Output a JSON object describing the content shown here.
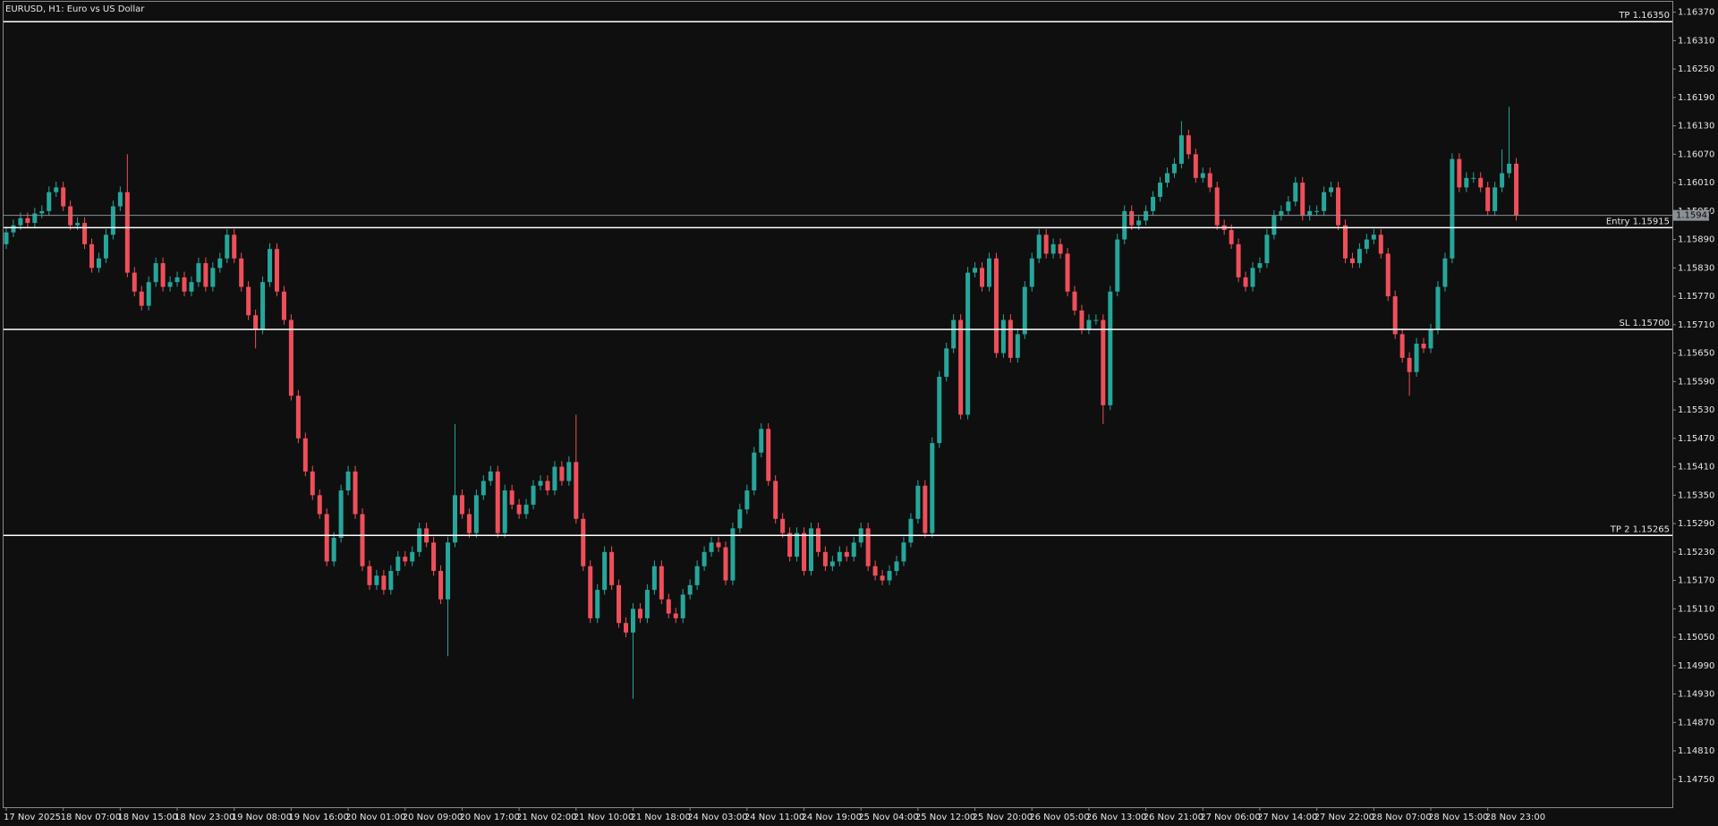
{
  "chart_data": {
    "type": "candlestick",
    "title": "EURUSD, H1:  Euro vs US Dollar",
    "up_color": "#26a69a",
    "down_color": "#ef4f5a",
    "level_color": "#ffffff",
    "bid_color": "#8a8f96",
    "ylim": [
      1.14691,
      1.16392
    ],
    "yticks": [
      {
        "value": 1.1637,
        "label": "1.16370"
      },
      {
        "value": 1.1631,
        "label": "1.16310"
      },
      {
        "value": 1.1625,
        "label": "1.16250"
      },
      {
        "value": 1.1619,
        "label": "1.16190"
      },
      {
        "value": 1.1613,
        "label": "1.16130"
      },
      {
        "value": 1.1607,
        "label": "1.16070"
      },
      {
        "value": 1.1601,
        "label": "1.16010"
      },
      {
        "value": 1.1595,
        "label": "1.15950"
      },
      {
        "value": 1.1589,
        "label": "1.15890"
      },
      {
        "value": 1.1583,
        "label": "1.15830"
      },
      {
        "value": 1.1577,
        "label": "1.15770"
      },
      {
        "value": 1.1571,
        "label": "1.15710"
      },
      {
        "value": 1.1565,
        "label": "1.15650"
      },
      {
        "value": 1.1559,
        "label": "1.15590"
      },
      {
        "value": 1.1553,
        "label": "1.15530"
      },
      {
        "value": 1.1547,
        "label": "1.15470"
      },
      {
        "value": 1.1541,
        "label": "1.15410"
      },
      {
        "value": 1.1535,
        "label": "1.15350"
      },
      {
        "value": 1.1529,
        "label": "1.15290"
      },
      {
        "value": 1.1523,
        "label": "1.15230"
      },
      {
        "value": 1.1517,
        "label": "1.15170"
      },
      {
        "value": 1.1511,
        "label": "1.15110"
      },
      {
        "value": 1.1505,
        "label": "1.15050"
      },
      {
        "value": 1.1499,
        "label": "1.14990"
      },
      {
        "value": 1.1493,
        "label": "1.14930"
      },
      {
        "value": 1.1487,
        "label": "1.14870"
      },
      {
        "value": 1.1481,
        "label": "1.14810"
      },
      {
        "value": 1.1475,
        "label": "1.14750"
      }
    ],
    "levels": [
      {
        "label": "TP 1.16350",
        "value": 1.1635
      },
      {
        "label": "Entry 1.15915",
        "value": 1.15915
      },
      {
        "label": "SL 1.15700",
        "value": 1.157
      },
      {
        "label": "TP 2 1.15265",
        "value": 1.15265
      }
    ],
    "bid": {
      "value": 1.15941,
      "label": "1.15941"
    },
    "categories": [
      "17 Nov 2025",
      null,
      null,
      null,
      null,
      null,
      null,
      null,
      "18 Nov 07:00",
      null,
      null,
      null,
      null,
      null,
      null,
      null,
      "18 Nov 15:00",
      null,
      null,
      null,
      null,
      null,
      null,
      null,
      "18 Nov 23:00",
      null,
      null,
      null,
      null,
      null,
      null,
      null,
      "19 Nov 08:00",
      null,
      null,
      null,
      null,
      null,
      null,
      null,
      "19 Nov 16:00",
      null,
      null,
      null,
      null,
      null,
      null,
      null,
      "20 Nov 01:00",
      null,
      null,
      null,
      null,
      null,
      null,
      null,
      "20 Nov 09:00",
      null,
      null,
      null,
      null,
      null,
      null,
      null,
      "20 Nov 17:00",
      null,
      null,
      null,
      null,
      null,
      null,
      null,
      "21 Nov 02:00",
      null,
      null,
      null,
      null,
      null,
      null,
      null,
      "21 Nov 10:00",
      null,
      null,
      null,
      null,
      null,
      null,
      null,
      "21 Nov 18:00",
      null,
      null,
      null,
      null,
      null,
      null,
      null,
      "24 Nov 03:00",
      null,
      null,
      null,
      null,
      null,
      null,
      null,
      "24 Nov 11:00",
      null,
      null,
      null,
      null,
      null,
      null,
      null,
      "24 Nov 19:00",
      null,
      null,
      null,
      null,
      null,
      null,
      null,
      "25 Nov 04:00",
      null,
      null,
      null,
      null,
      null,
      null,
      null,
      "25 Nov 12:00",
      null,
      null,
      null,
      null,
      null,
      null,
      null,
      "25 Nov 20:00",
      null,
      null,
      null,
      null,
      null,
      null,
      null,
      "26 Nov 05:00",
      null,
      null,
      null,
      null,
      null,
      null,
      null,
      "26 Nov 13:00",
      null,
      null,
      null,
      null,
      null,
      null,
      null,
      "26 Nov 21:00",
      null,
      null,
      null,
      null,
      null,
      null,
      null,
      "27 Nov 06:00",
      null,
      null,
      null,
      null,
      null,
      null,
      null,
      "27 Nov 14:00",
      null,
      null,
      null,
      null,
      null,
      null,
      null,
      "27 Nov 22:00",
      null,
      null,
      null,
      null,
      null,
      null,
      null,
      "28 Nov 07:00",
      null,
      null,
      null,
      null,
      null,
      null,
      null,
      "28 Nov 15:00",
      null,
      null,
      null,
      null,
      null,
      null,
      null,
      "28 Nov 23:00",
      null,
      null,
      null,
      null
    ],
    "open": [
      1.1588,
      1.15905,
      1.1592,
      1.15935,
      1.15925,
      1.15945,
      1.1595,
      1.1599,
      1.16,
      1.1596,
      1.1592,
      1.15925,
      1.1588,
      1.1583,
      1.1585,
      1.159,
      1.1596,
      1.1599,
      1.1582,
      1.1578,
      1.1575,
      1.158,
      1.1584,
      1.1579,
      1.158,
      1.1581,
      1.1578,
      1.158,
      1.1584,
      1.1579,
      1.1583,
      1.1585,
      1.159,
      1.1585,
      1.1579,
      1.1573,
      1.157,
      1.158,
      1.1587,
      1.1578,
      1.1572,
      1.1556,
      1.1547,
      1.154,
      1.1535,
      1.1531,
      1.1521,
      1.1526,
      1.1536,
      1.154,
      1.1531,
      1.152,
      1.1516,
      1.1518,
      1.1515,
      1.1519,
      1.1522,
      1.1521,
      1.1523,
      1.1528,
      1.1525,
      1.1519,
      1.1513,
      1.1525,
      1.1535,
      1.1531,
      1.1527,
      1.1535,
      1.1538,
      1.154,
      1.1527,
      1.1536,
      1.1533,
      1.1531,
      1.1533,
      1.1537,
      1.1538,
      1.1536,
      1.1541,
      1.1538,
      1.1542,
      1.153,
      1.152,
      1.1509,
      1.1515,
      1.1523,
      1.1516,
      1.1508,
      1.1506,
      1.1511,
      1.1509,
      1.1515,
      1.152,
      1.1513,
      1.151,
      1.1509,
      1.1514,
      1.1516,
      1.152,
      1.1523,
      1.1525,
      1.1524,
      1.1517,
      1.1528,
      1.1532,
      1.1536,
      1.1544,
      1.1549,
      1.1538,
      1.153,
      1.1527,
      1.1522,
      1.1527,
      1.1519,
      1.1528,
      1.1523,
      1.152,
      1.1521,
      1.1523,
      1.1522,
      1.1525,
      1.1528,
      1.152,
      1.1518,
      1.1517,
      1.1519,
      1.1521,
      1.1525,
      1.153,
      1.1537,
      1.1527,
      1.1546,
      1.156,
      1.1566,
      1.1572,
      1.1552,
      1.1582,
      1.1583,
      1.1579,
      1.1585,
      1.1565,
      1.1572,
      1.1564,
      1.1569,
      1.1579,
      1.1585,
      1.159,
      1.1586,
      1.1588,
      1.1586,
      1.1578,
      1.1574,
      1.157,
      1.1572,
      1.1572,
      1.1554,
      1.1578,
      1.1589,
      1.1595,
      1.1592,
      1.1593,
      1.1595,
      1.1598,
      1.1601,
      1.1603,
      1.1605,
      1.1611,
      1.1607,
      1.1602,
      1.1603,
      1.16,
      1.1592,
      1.1591,
      1.1588,
      1.1581,
      1.1579,
      1.1583,
      1.1584,
      1.159,
      1.1594,
      1.1595,
      1.1597,
      1.1601,
      1.1594,
      1.1595,
      1.1595,
      1.1599,
      1.16,
      1.1592,
      1.1585,
      1.1584,
      1.1587,
      1.1589,
      1.159,
      1.1586,
      1.1577,
      1.1569,
      1.1564,
      1.1561,
      1.1567,
      1.1566,
      1.157,
      1.1579,
      1.1585,
      1.1606,
      1.16,
      1.1602,
      1.1602,
      1.16,
      1.1595,
      1.16,
      1.1603,
      1.1605
    ],
    "high": [
      1.15917,
      1.15932,
      1.15947,
      1.15947,
      1.15957,
      1.15962,
      1.16002,
      1.16012,
      1.16012,
      1.15972,
      1.15937,
      1.15937,
      1.15892,
      1.15862,
      1.15912,
      1.15972,
      1.16002,
      1.1607,
      1.15832,
      1.15792,
      1.15812,
      1.15852,
      1.15852,
      1.15812,
      1.15822,
      1.15822,
      1.15812,
      1.15852,
      1.15852,
      1.15842,
      1.15862,
      1.15912,
      1.15912,
      1.15862,
      1.15802,
      1.15742,
      1.15812,
      1.15882,
      1.15882,
      1.15792,
      1.15732,
      1.15572,
      1.15482,
      1.15412,
      1.15362,
      1.15322,
      1.15272,
      1.15372,
      1.15412,
      1.15412,
      1.15322,
      1.15212,
      1.15192,
      1.15192,
      1.15202,
      1.15232,
      1.15232,
      1.15242,
      1.15292,
      1.15292,
      1.15262,
      1.15202,
      1.15262,
      1.155,
      1.15362,
      1.15322,
      1.15362,
      1.15392,
      1.15412,
      1.15412,
      1.15372,
      1.15372,
      1.15342,
      1.15342,
      1.15382,
      1.15392,
      1.15392,
      1.15422,
      1.15422,
      1.15432,
      1.1552,
      1.15312,
      1.15212,
      1.15162,
      1.15242,
      1.15242,
      1.15172,
      1.15092,
      1.15122,
      1.15122,
      1.15162,
      1.15212,
      1.15212,
      1.15142,
      1.15112,
      1.15152,
      1.15172,
      1.15212,
      1.15242,
      1.15262,
      1.15262,
      1.15252,
      1.15292,
      1.15332,
      1.15372,
      1.15452,
      1.15502,
      1.15502,
      1.15392,
      1.15312,
      1.15282,
      1.15282,
      1.15282,
      1.15292,
      1.15292,
      1.15242,
      1.15222,
      1.15242,
      1.15242,
      1.15262,
      1.15292,
      1.15292,
      1.15212,
      1.15192,
      1.15202,
      1.15222,
      1.15262,
      1.15312,
      1.15382,
      1.15382,
      1.15472,
      1.15612,
      1.15672,
      1.15732,
      1.15732,
      1.15832,
      1.15842,
      1.15842,
      1.15862,
      1.15862,
      1.15732,
      1.15732,
      1.15702,
      1.15802,
      1.15862,
      1.15912,
      1.15912,
      1.15892,
      1.15892,
      1.15872,
      1.15792,
      1.15752,
      1.15732,
      1.15732,
      1.15732,
      1.15792,
      1.15902,
      1.15962,
      1.15962,
      1.15942,
      1.15962,
      1.15992,
      1.16022,
      1.16042,
      1.16062,
      1.1614,
      1.16122,
      1.16082,
      1.16042,
      1.16042,
      1.16012,
      1.15932,
      1.15922,
      1.15892,
      1.15822,
      1.15842,
      1.15852,
      1.15912,
      1.15952,
      1.15962,
      1.15982,
      1.16022,
      1.16022,
      1.15962,
      1.15962,
      1.16002,
      1.16012,
      1.16012,
      1.15932,
      1.15862,
      1.15882,
      1.15902,
      1.15912,
      1.15912,
      1.15872,
      1.15782,
      1.15702,
      1.15652,
      1.15682,
      1.15682,
      1.15712,
      1.15802,
      1.15862,
      1.16072,
      1.16072,
      1.16032,
      1.16032,
      1.16032,
      1.16012,
      1.16012,
      1.1608,
      1.1617,
      1.16062
    ],
    "low": [
      1.1587,
      1.15895,
      1.1591,
      1.15915,
      1.15915,
      1.15935,
      1.1594,
      1.1598,
      1.1595,
      1.1591,
      1.1591,
      1.1587,
      1.1582,
      1.1582,
      1.1584,
      1.1589,
      1.1595,
      1.1581,
      1.1577,
      1.1574,
      1.1574,
      1.1579,
      1.1578,
      1.1578,
      1.1579,
      1.1577,
      1.1577,
      1.1579,
      1.1578,
      1.1578,
      1.1582,
      1.1584,
      1.1584,
      1.1578,
      1.1572,
      1.1566,
      1.1569,
      1.1579,
      1.1577,
      1.1571,
      1.1555,
      1.1546,
      1.1539,
      1.1534,
      1.153,
      1.152,
      1.152,
      1.1525,
      1.1535,
      1.153,
      1.1519,
      1.1515,
      1.1515,
      1.1514,
      1.1514,
      1.1518,
      1.152,
      1.152,
      1.1522,
      1.1524,
      1.1518,
      1.1512,
      1.1501,
      1.1524,
      1.153,
      1.1526,
      1.1526,
      1.1534,
      1.1537,
      1.1526,
      1.1526,
      1.1532,
      1.153,
      1.153,
      1.1532,
      1.1536,
      1.1535,
      1.1535,
      1.1537,
      1.1537,
      1.1529,
      1.1519,
      1.1508,
      1.1508,
      1.1514,
      1.1515,
      1.1507,
      1.1505,
      1.1492,
      1.1508,
      1.1508,
      1.1514,
      1.1512,
      1.1509,
      1.1508,
      1.1508,
      1.1513,
      1.1515,
      1.1519,
      1.1522,
      1.1523,
      1.1516,
      1.1516,
      1.1527,
      1.1531,
      1.1535,
      1.1543,
      1.1537,
      1.1529,
      1.1526,
      1.1521,
      1.1521,
      1.1518,
      1.1518,
      1.1522,
      1.1519,
      1.1519,
      1.152,
      1.1521,
      1.1521,
      1.1524,
      1.1519,
      1.1517,
      1.1516,
      1.1516,
      1.1518,
      1.152,
      1.1524,
      1.1529,
      1.1526,
      1.1526,
      1.1545,
      1.1559,
      1.1565,
      1.1551,
      1.1551,
      1.1581,
      1.1578,
      1.1578,
      1.1564,
      1.1564,
      1.1563,
      1.1563,
      1.1568,
      1.1578,
      1.1584,
      1.1585,
      1.1585,
      1.1585,
      1.1577,
      1.1573,
      1.1569,
      1.1569,
      1.1571,
      1.155,
      1.1553,
      1.1577,
      1.1588,
      1.1591,
      1.1591,
      1.1592,
      1.1594,
      1.1597,
      1.16,
      1.1602,
      1.1604,
      1.1606,
      1.1601,
      1.1601,
      1.1599,
      1.1591,
      1.159,
      1.1587,
      1.158,
      1.1578,
      1.1578,
      1.1582,
      1.1583,
      1.1589,
      1.1593,
      1.1594,
      1.1596,
      1.1593,
      1.1593,
      1.1594,
      1.1594,
      1.1598,
      1.1591,
      1.1584,
      1.1583,
      1.1583,
      1.1586,
      1.1588,
      1.1585,
      1.1576,
      1.1568,
      1.1563,
      1.1556,
      1.156,
      1.1565,
      1.1565,
      1.1569,
      1.1578,
      1.1584,
      1.1599,
      1.1599,
      1.1601,
      1.1599,
      1.1594,
      1.1594,
      1.1599,
      1.1602,
      1.1593
    ],
    "close": [
      1.15905,
      1.1592,
      1.15935,
      1.15925,
      1.15945,
      1.1595,
      1.1599,
      1.16,
      1.1596,
      1.1592,
      1.15925,
      1.1588,
      1.1583,
      1.1585,
      1.159,
      1.1596,
      1.1599,
      1.1582,
      1.1578,
      1.1575,
      1.158,
      1.1584,
      1.1579,
      1.158,
      1.1581,
      1.1578,
      1.158,
      1.1584,
      1.1579,
      1.1583,
      1.1585,
      1.159,
      1.1585,
      1.1579,
      1.1573,
      1.157,
      1.158,
      1.1587,
      1.1578,
      1.1572,
      1.1556,
      1.1547,
      1.154,
      1.1535,
      1.1531,
      1.1521,
      1.1526,
      1.1536,
      1.154,
      1.1531,
      1.152,
      1.1516,
      1.1518,
      1.1515,
      1.1519,
      1.1522,
      1.1521,
      1.1523,
      1.1528,
      1.1525,
      1.1519,
      1.1513,
      1.1525,
      1.1535,
      1.1531,
      1.1527,
      1.1535,
      1.1538,
      1.154,
      1.1527,
      1.1536,
      1.1533,
      1.1531,
      1.1533,
      1.1537,
      1.1538,
      1.1536,
      1.1541,
      1.1538,
      1.1542,
      1.153,
      1.152,
      1.1509,
      1.1515,
      1.1523,
      1.1516,
      1.1508,
      1.1506,
      1.1511,
      1.1509,
      1.1515,
      1.152,
      1.1513,
      1.151,
      1.1509,
      1.1514,
      1.1516,
      1.152,
      1.1523,
      1.1525,
      1.1524,
      1.1517,
      1.1528,
      1.1532,
      1.1536,
      1.1544,
      1.1549,
      1.1538,
      1.153,
      1.1527,
      1.1522,
      1.1527,
      1.1519,
      1.1528,
      1.1523,
      1.152,
      1.1521,
      1.1523,
      1.1522,
      1.1525,
      1.1528,
      1.152,
      1.1518,
      1.1517,
      1.1519,
      1.1521,
      1.1525,
      1.153,
      1.1537,
      1.1527,
      1.1546,
      1.156,
      1.1566,
      1.1572,
      1.1552,
      1.1582,
      1.1583,
      1.1579,
      1.1585,
      1.1565,
      1.1572,
      1.1564,
      1.1569,
      1.1579,
      1.1585,
      1.159,
      1.1586,
      1.1588,
      1.1586,
      1.1578,
      1.1574,
      1.157,
      1.1572,
      1.1572,
      1.1554,
      1.1578,
      1.1589,
      1.1595,
      1.1592,
      1.1593,
      1.1595,
      1.1598,
      1.1601,
      1.1603,
      1.1605,
      1.1611,
      1.1607,
      1.1602,
      1.1603,
      1.16,
      1.1592,
      1.1591,
      1.1588,
      1.1581,
      1.1579,
      1.1583,
      1.1584,
      1.159,
      1.1594,
      1.1595,
      1.1597,
      1.1601,
      1.1594,
      1.1595,
      1.1595,
      1.1599,
      1.16,
      1.1592,
      1.1585,
      1.1584,
      1.1587,
      1.1589,
      1.159,
      1.1586,
      1.1577,
      1.1569,
      1.1564,
      1.1561,
      1.1567,
      1.1566,
      1.157,
      1.1579,
      1.1585,
      1.1606,
      1.16,
      1.1602,
      1.1602,
      1.16,
      1.1595,
      1.16,
      1.1603,
      1.1605,
      1.15941
    ]
  }
}
